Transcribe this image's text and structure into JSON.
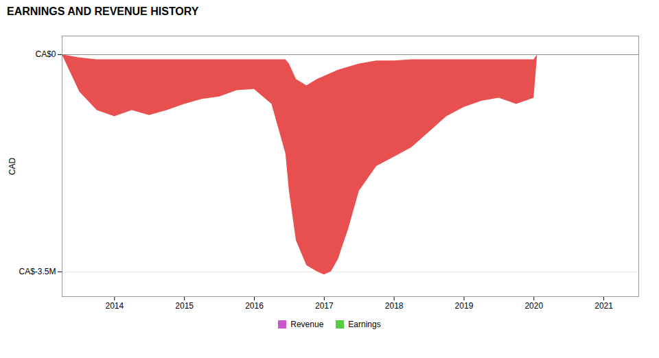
{
  "chart_data": {
    "type": "area",
    "title": "EARNINGS AND REVENUE HISTORY",
    "y_label": "CAD",
    "color": "#e85050",
    "x": [
      2013.25,
      2013.5,
      2013.75,
      2014.0,
      2014.25,
      2014.5,
      2014.75,
      2015.0,
      2015.25,
      2015.5,
      2015.75,
      2016.0,
      2016.25,
      2016.45,
      2016.5,
      2016.6,
      2016.75,
      2016.9,
      2017.0,
      2017.1,
      2017.2,
      2017.35,
      2017.5,
      2017.75,
      2018.0,
      2018.25,
      2018.5,
      2018.75,
      2019.0,
      2019.25,
      2019.5,
      2019.75,
      2020.0,
      2020.05
    ],
    "series": [
      {
        "name": "Revenue",
        "color": "#cc55cc",
        "values": [
          0,
          -50000,
          -80000,
          -80000,
          -80000,
          -80000,
          -80000,
          -80000,
          -80000,
          -80000,
          -80000,
          -80000,
          -80000,
          -80000,
          -150000,
          -400000,
          -500000,
          -400000,
          -350000,
          -300000,
          -250000,
          -200000,
          -150000,
          -100000,
          -100000,
          -80000,
          -80000,
          -80000,
          -80000,
          -80000,
          -80000,
          -80000,
          -80000,
          0
        ]
      },
      {
        "name": "Earnings",
        "color": "#55cc44",
        "values": [
          0,
          -600000,
          -900000,
          -1000000,
          -900000,
          -980000,
          -900000,
          -800000,
          -720000,
          -680000,
          -580000,
          -560000,
          -800000,
          -1600000,
          -2200000,
          -3000000,
          -3400000,
          -3500000,
          -3550000,
          -3500000,
          -3300000,
          -2800000,
          -2200000,
          -1800000,
          -1650000,
          -1500000,
          -1250000,
          -1000000,
          -850000,
          -750000,
          -700000,
          -800000,
          -700000,
          0
        ]
      }
    ],
    "xlim": [
      2013.25,
      2021.5
    ],
    "xticks": [
      2014,
      2015,
      2016,
      2017,
      2018,
      2019,
      2020,
      2021
    ],
    "ylim": [
      -3900000,
      300000
    ],
    "yticks": [
      {
        "value": 0,
        "label": "CA$0"
      },
      {
        "value": -3500000,
        "label": "CA$-3.5M"
      }
    ],
    "grid": true,
    "legend": "bottom"
  }
}
